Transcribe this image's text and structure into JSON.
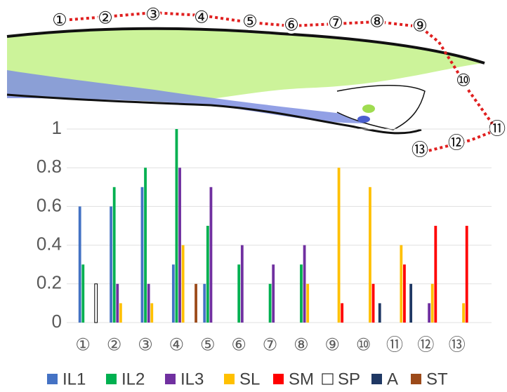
{
  "illustration": {
    "markers": [
      "①",
      "②",
      "③",
      "④",
      "⑤",
      "⑥",
      "⑦",
      "⑧",
      "⑨",
      "⑩",
      "⑪",
      "⑫",
      "⑬"
    ]
  },
  "chart_data": {
    "type": "bar",
    "categories": [
      "①",
      "②",
      "③",
      "④",
      "⑤",
      "⑥",
      "⑦",
      "⑧",
      "⑨",
      "⑩",
      "⑪",
      "⑫",
      "⑬"
    ],
    "series": [
      {
        "name": "IL1",
        "color": "#4472c4",
        "values": [
          0.6,
          0.6,
          0.7,
          0.3,
          0.2,
          0,
          0,
          0,
          0,
          0,
          0,
          0,
          0
        ]
      },
      {
        "name": "IL2",
        "color": "#00b050",
        "values": [
          0.3,
          0.7,
          0.8,
          1.0,
          0.5,
          0.3,
          0.2,
          0.3,
          0,
          0,
          0,
          0,
          0
        ]
      },
      {
        "name": "IL3",
        "color": "#7030a0",
        "values": [
          0,
          0.2,
          0.2,
          0.8,
          0.7,
          0.4,
          0.3,
          0.4,
          0,
          0,
          0,
          0.1,
          0
        ]
      },
      {
        "name": "SL",
        "color": "#ffc000",
        "values": [
          0,
          0.1,
          0.1,
          0.4,
          0,
          0,
          0,
          0.2,
          0.8,
          0.7,
          0.4,
          0.2,
          0.1
        ]
      },
      {
        "name": "SM",
        "color": "#ff0000",
        "values": [
          0,
          0,
          0,
          0,
          0,
          0,
          0,
          0,
          0.1,
          0.2,
          0.3,
          0.5,
          0.5
        ]
      },
      {
        "name": "SP",
        "color": "#ffffff",
        "values": [
          0.2,
          0,
          0,
          0,
          0,
          0,
          0,
          0,
          0,
          0,
          0,
          0,
          0
        ]
      },
      {
        "name": "A",
        "color": "#1f3864",
        "values": [
          0,
          0,
          0,
          0,
          0,
          0,
          0,
          0,
          0,
          0.1,
          0.2,
          0,
          0
        ]
      },
      {
        "name": "ST",
        "color": "#9c4a1a",
        "values": [
          0,
          0,
          0,
          0.2,
          0,
          0,
          0,
          0,
          0,
          0,
          0,
          0,
          0
        ]
      }
    ],
    "ylim": [
      0,
      1
    ],
    "yticks": [
      0,
      0.2,
      0.4,
      0.6,
      0.8,
      1
    ],
    "grid": true
  }
}
